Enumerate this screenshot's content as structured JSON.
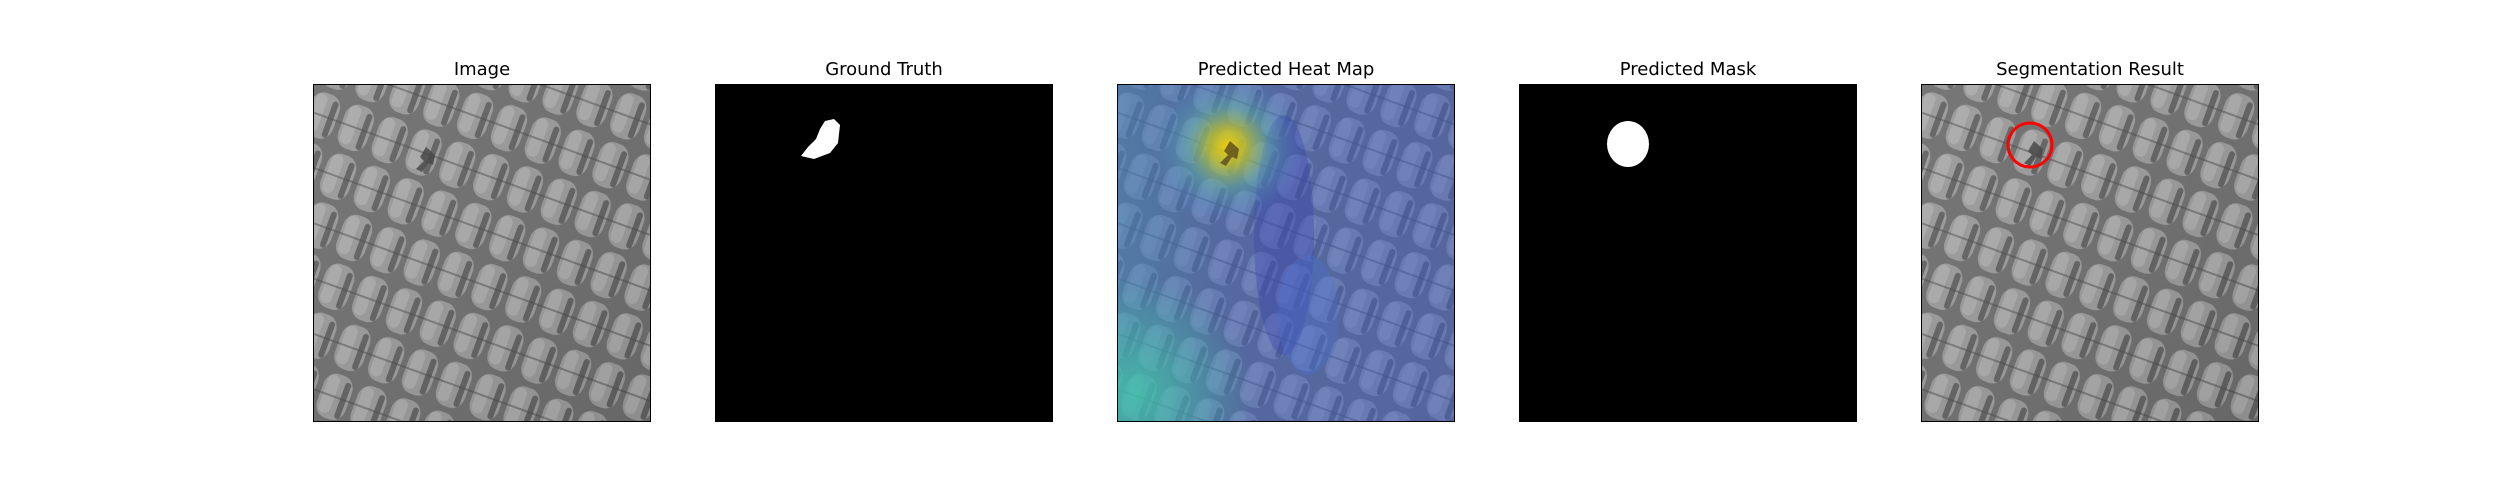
{
  "figure": {
    "panels": [
      {
        "title": "Image",
        "kind": "image"
      },
      {
        "title": "Ground Truth",
        "kind": "ground-truth"
      },
      {
        "title": "Predicted Heat Map",
        "kind": "heatmap"
      },
      {
        "title": "Predicted Mask",
        "kind": "mask"
      },
      {
        "title": "Segmentation Result",
        "kind": "segmentation"
      }
    ],
    "colors": {
      "mask_background": "#000000",
      "mask_foreground": "#ffffff",
      "outline": "#ff0000",
      "texture_base": "#8a8a8a"
    }
  }
}
